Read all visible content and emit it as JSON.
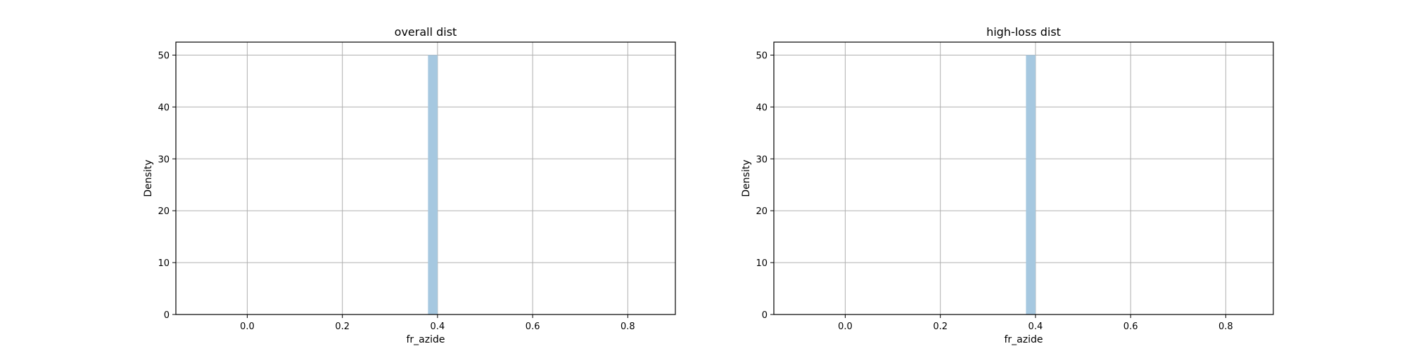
{
  "chart_data": [
    {
      "type": "bar",
      "title": "overall dist",
      "xlabel": "fr_azide",
      "ylabel": "Density",
      "xlim": [
        -0.15,
        0.9
      ],
      "ylim": [
        0,
        52.5
      ],
      "xticks": [
        "0.0",
        "0.2",
        "0.4",
        "0.6",
        "0.8"
      ],
      "yticks": [
        "0",
        "10",
        "20",
        "30",
        "40",
        "50"
      ],
      "grid": true,
      "bars": [
        {
          "x_start": 0.38,
          "x_end": 0.4,
          "value": 50
        }
      ],
      "bar_color": "#a6c8e0"
    },
    {
      "type": "bar",
      "title": "high-loss dist",
      "xlabel": "fr_azide",
      "ylabel": "Density",
      "xlim": [
        -0.15,
        0.9
      ],
      "ylim": [
        0,
        52.5
      ],
      "xticks": [
        "0.0",
        "0.2",
        "0.4",
        "0.6",
        "0.8"
      ],
      "yticks": [
        "0",
        "10",
        "20",
        "30",
        "40",
        "50"
      ],
      "grid": true,
      "bars": [
        {
          "x_start": 0.38,
          "x_end": 0.4,
          "value": 50
        }
      ],
      "bar_color": "#a6c8e0"
    }
  ]
}
